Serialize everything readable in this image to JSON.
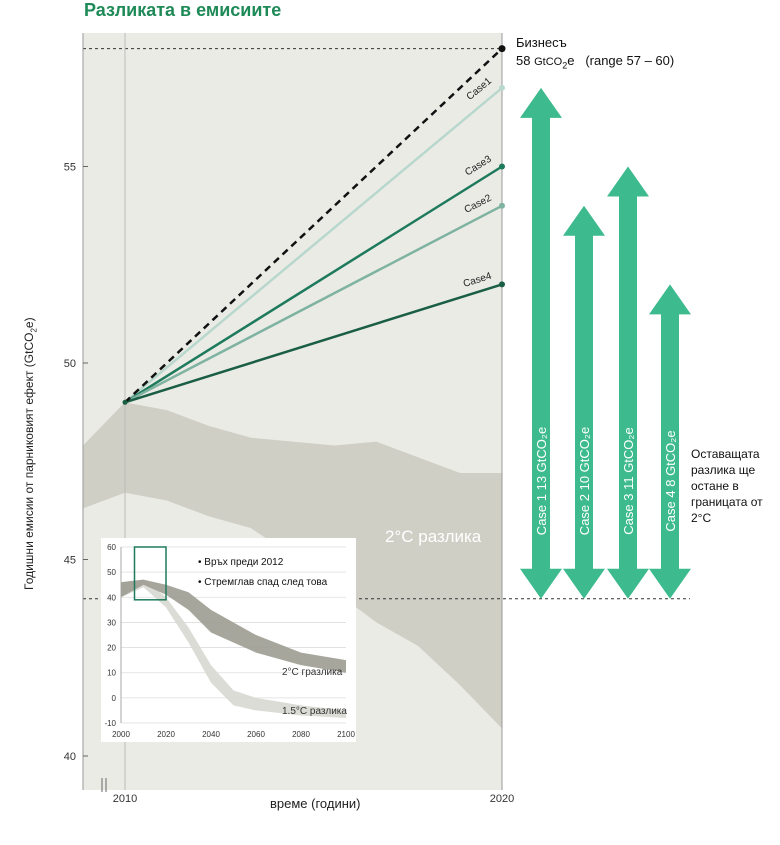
{
  "title": "Разликата в емисиите",
  "chart_data": [
    {
      "type": "line",
      "title": "Разликата в емисиите",
      "xlabel": "време (години)",
      "ylabel": "Годишни емисии от парниковият ефект (GtCO2e)",
      "xlim": [
        2010,
        2020
      ],
      "ylim": [
        40,
        58
      ],
      "x_ticks": [
        "2010",
        "2020"
      ],
      "y_ticks": [
        "40",
        "45",
        "50",
        "55"
      ],
      "business_as_usual": {
        "name": "Бизнесъ",
        "value_label": "58",
        "unit": "GtCO2e",
        "range": "(range 57 – 60)",
        "x": [
          2010,
          2020
        ],
        "y": [
          49,
          58
        ]
      },
      "series": [
        {
          "name": "Case1",
          "x": [
            2010,
            2020
          ],
          "y": [
            49,
            57
          ],
          "color": "#b8d8cd"
        },
        {
          "name": "Case3",
          "x": [
            2010,
            2020
          ],
          "y": [
            49,
            55
          ],
          "color": "#1e7a5c"
        },
        {
          "name": "Case2",
          "x": [
            2010,
            2020
          ],
          "y": [
            49,
            54
          ],
          "color": "#7fb3a1"
        },
        {
          "name": "Case4",
          "x": [
            2010,
            2020
          ],
          "y": [
            49,
            52
          ],
          "color": "#1a5e45"
        }
      ],
      "band_2c": {
        "label": "2°C разлика",
        "x": [
          2000,
          2010,
          2020,
          2030,
          2040,
          2050,
          2060,
          2070,
          2080,
          2090,
          2100
        ],
        "upper": [
          47.9,
          49,
          48.8,
          48.4,
          48.1,
          48,
          47.9,
          48,
          47.6,
          47.2,
          47.2
        ],
        "lower": [
          46.3,
          46.7,
          46.5,
          46.1,
          45.8,
          45.1,
          44.2,
          43.4,
          42.8,
          41.8,
          40.7
        ]
      },
      "target_2c_line": 44,
      "gap_arrows": [
        {
          "case": "Case 1",
          "gap": "13 GtCO2e",
          "from": 44,
          "to": 57
        },
        {
          "case": "Case 2",
          "gap": "10 GtCO2e",
          "from": 44,
          "to": 54
        },
        {
          "case": "Case 3",
          "gap": "11 GtCO2e",
          "from": 44,
          "to": 55
        },
        {
          "case": "Case 4",
          "gap": "8 GtCO2e",
          "from": 44,
          "to": 52
        }
      ],
      "remaining_gap_note": "Оставащата разлика ще остане в границата от 2°C"
    },
    {
      "type": "area",
      "xlim": [
        2000,
        2100
      ],
      "ylim": [
        -10,
        60
      ],
      "x_ticks": [
        "2000",
        "2020",
        "2040",
        "2060",
        "2080",
        "2100"
      ],
      "y_ticks": [
        "60",
        "50",
        "40",
        "30",
        "20",
        "10",
        "0",
        "-10"
      ],
      "legend": [
        "• Връх преди 2012",
        "• Стремглав спад след това"
      ],
      "series": [
        {
          "name": "2°C гразлика",
          "x": [
            2000,
            2010,
            2020,
            2030,
            2040,
            2060,
            2080,
            2100
          ],
          "upper": [
            46,
            47,
            45,
            42,
            35,
            25,
            18,
            15
          ],
          "lower": [
            40,
            45,
            41,
            35,
            26,
            18,
            13,
            10
          ]
        },
        {
          "name": "1.5°C разлика",
          "x": [
            2000,
            2010,
            2020,
            2030,
            2040,
            2050,
            2060,
            2080,
            2100
          ],
          "upper": [
            46,
            47,
            40,
            28,
            13,
            3,
            0,
            -3,
            -5
          ],
          "lower": [
            40,
            44,
            36,
            22,
            6,
            -3,
            -5,
            -7,
            -8
          ]
        }
      ],
      "highlight_box": {
        "x": [
          2006,
          2020
        ],
        "y": [
          39,
          60
        ]
      }
    }
  ],
  "labels": {
    "ylabel": "Годишни емисии от парниковият ефект (GtCO",
    "ylabel_sub": "2",
    "ylabel_end": "e)",
    "xlabel": "време (години)",
    "bau_name": "Бизнесъ",
    "bau_value": "58",
    "bau_unit_a": "GtCO",
    "bau_unit_sub": "2",
    "bau_unit_b": "e",
    "bau_range": "(range 57 – 60)",
    "remaining": "Оставащата разлика ще остане в границата от  2°C"
  },
  "colors": {
    "title": "#1e8a57",
    "arrow": "#3dbb8f",
    "band": "#cfcfc6",
    "panel": "#ebebe6"
  }
}
